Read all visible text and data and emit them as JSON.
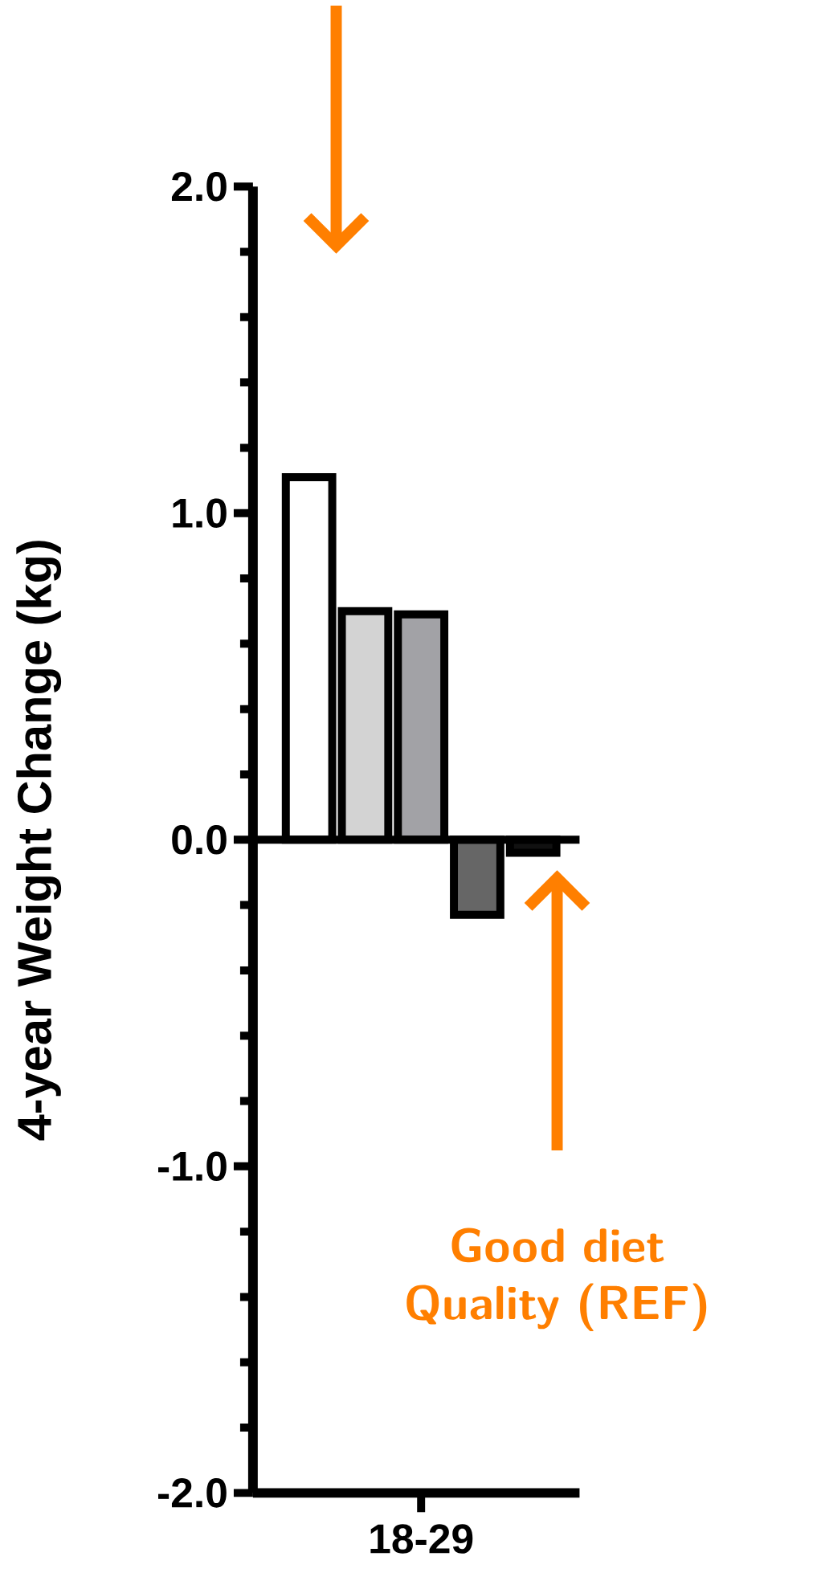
{
  "chart_data": {
    "type": "bar",
    "ylabel": "4-year Weight  Change  (kg)",
    "categories": [
      "18-29"
    ],
    "series": [
      {
        "color": "#ffffff",
        "values": [
          1.11
        ]
      },
      {
        "color": "#d3d3d3",
        "values": [
          0.7
        ]
      },
      {
        "color": "#a2a2a6",
        "values": [
          0.69
        ]
      },
      {
        "color": "#666666",
        "values": [
          -0.23
        ]
      },
      {
        "color": "#111111",
        "values": [
          -0.04
        ]
      }
    ],
    "ylim": [
      -2,
      2
    ],
    "yticks": [
      {
        "value": 2,
        "label": "2.0"
      },
      {
        "value": 1,
        "label": "1.0"
      },
      {
        "value": 0,
        "label": "0.0"
      },
      {
        "value": -1,
        "label": "-1.0"
      },
      {
        "value": -2,
        "label": "-2.0"
      }
    ],
    "ref_lines": [
      {
        "axis": "y",
        "value": 0,
        "color": "#000000"
      }
    ],
    "annotations": [
      "Good diet Quality (REF)"
    ],
    "grid": false
  }
}
